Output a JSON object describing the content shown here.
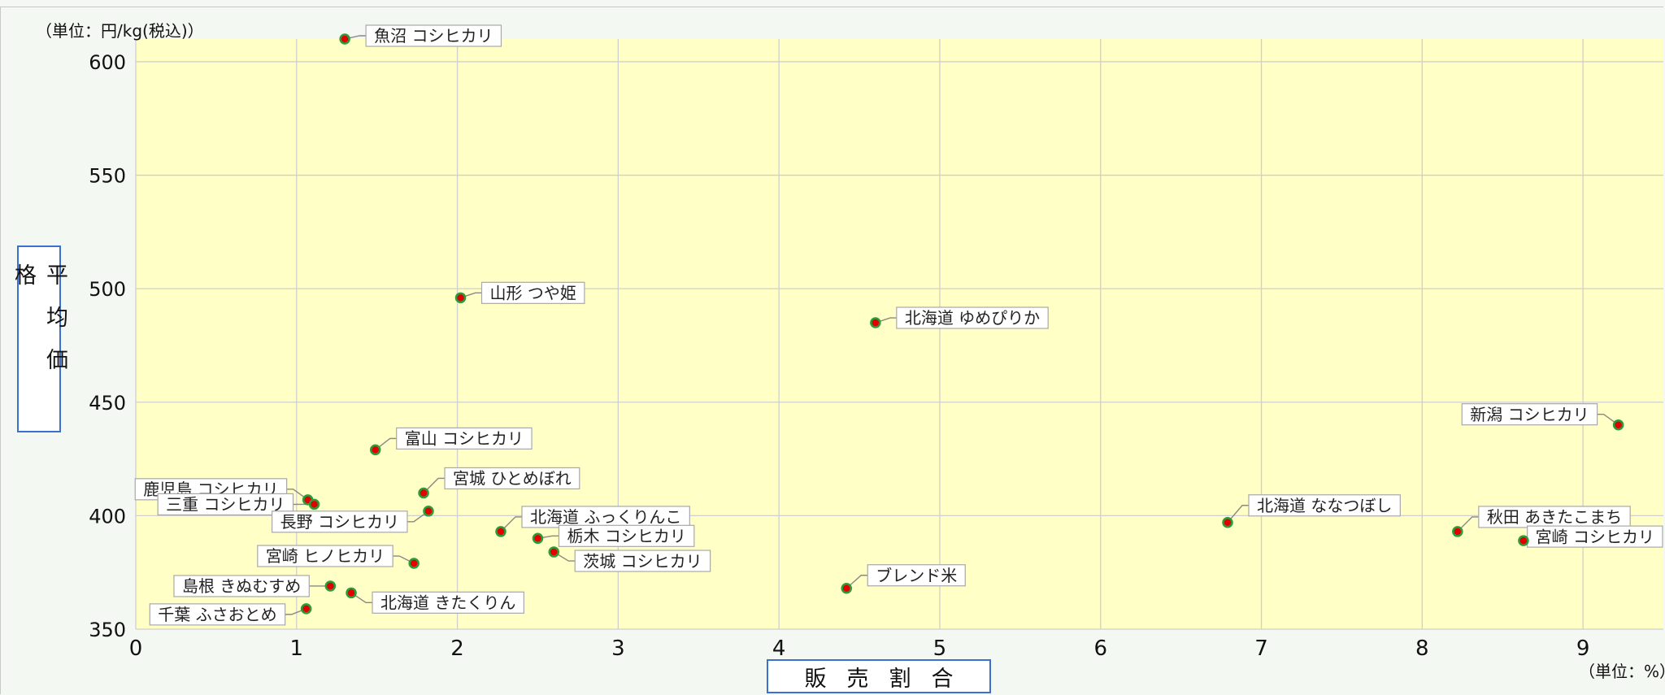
{
  "chart_data": {
    "type": "scatter",
    "y_unit_label": "（単位：円/kg(税込)）",
    "x_unit_label": "（単位：%）",
    "xlabel": "販売割合",
    "ylabel": "平均価格",
    "xlim": [
      0,
      9.5
    ],
    "ylim": [
      350,
      610
    ],
    "x_ticks": [
      0,
      1,
      2,
      3,
      4,
      5,
      6,
      7,
      8,
      9
    ],
    "y_ticks": [
      350,
      400,
      450,
      500,
      550,
      600
    ],
    "grid": true,
    "colors": {
      "plot_bg": "#ffffc6",
      "point": "#e30000",
      "point_border": "#2a9d3a",
      "grid": "#cfcfcf",
      "axis_title_border": "#3b6fd0"
    },
    "points": [
      {
        "label": "魚沼 コシヒカリ",
        "x": 1.3,
        "y": 610,
        "label_side": "right",
        "label_dy": -4
      },
      {
        "label": "山形 つや姫",
        "x": 2.02,
        "y": 496,
        "label_side": "right",
        "label_dy": -6
      },
      {
        "label": "北海道 ゆめぴりか",
        "x": 4.6,
        "y": 485,
        "label_side": "right",
        "label_dy": -6
      },
      {
        "label": "富山 コシヒカリ",
        "x": 1.49,
        "y": 429,
        "label_side": "right",
        "label_dy": -14
      },
      {
        "label": "宮城 ひとめぼれ",
        "x": 1.79,
        "y": 410,
        "label_side": "right",
        "label_dy": -18
      },
      {
        "label": "鹿児島 コシヒカリ",
        "x": 1.07,
        "y": 407,
        "label_side": "left",
        "label_dy": -13
      },
      {
        "label": "三重 コシヒカリ",
        "x": 1.11,
        "y": 405,
        "label_side": "left",
        "label_dy": 0
      },
      {
        "label": "長野 コシヒカリ",
        "x": 1.82,
        "y": 402,
        "label_side": "left",
        "label_dy": 13
      },
      {
        "label": "北海道 ふっくりんこ",
        "x": 2.27,
        "y": 393,
        "label_side": "right",
        "label_dy": -18
      },
      {
        "label": "栃木 コシヒカリ",
        "x": 2.5,
        "y": 390,
        "label_side": "right",
        "label_dy": -3
      },
      {
        "label": "茨城 コシヒカリ",
        "x": 2.6,
        "y": 384,
        "label_side": "right",
        "label_dy": 11
      },
      {
        "label": "宮崎 ヒノヒカリ",
        "x": 1.73,
        "y": 379,
        "label_side": "left",
        "label_dy": -9
      },
      {
        "label": "島根 きぬむすめ",
        "x": 1.21,
        "y": 369,
        "label_side": "left",
        "label_dy": 0
      },
      {
        "label": "北海道 きたくりん",
        "x": 1.34,
        "y": 366,
        "label_side": "right",
        "label_dy": 12
      },
      {
        "label": "千葉 ふさおとめ",
        "x": 1.06,
        "y": 359,
        "label_side": "left",
        "label_dy": 7
      },
      {
        "label": "ブレンド米",
        "x": 4.42,
        "y": 368,
        "label_side": "right",
        "label_dy": -16
      },
      {
        "label": "北海道 ななつぼし",
        "x": 6.79,
        "y": 397,
        "label_side": "right",
        "label_dy": -21
      },
      {
        "label": "新潟 コシヒカリ",
        "x": 9.22,
        "y": 440,
        "label_side": "left",
        "label_dy": -13
      },
      {
        "label": "秋田 あきたこまち",
        "x": 8.22,
        "y": 393,
        "label_side": "right",
        "label_dy": -18
      },
      {
        "label": "宮崎 コシヒカリ",
        "x": 8.63,
        "y": 389,
        "label_side": "right",
        "label_dy": -5
      }
    ]
  }
}
